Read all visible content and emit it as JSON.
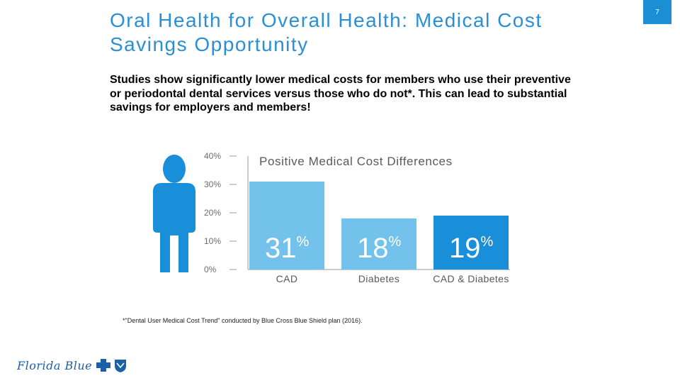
{
  "slide": {
    "title": "Oral Health for Overall Health: Medical Cost Savings Opportunity",
    "page_number": "7",
    "intro": "Studies show significantly lower medical costs for members who use their preventive or periodontal dental services versus those who do not*.  This can lead to substantial savings for employers and members!",
    "footnote": "*\"Dental User Medical Cost Trend\" conducted by Blue Cross Blue Shield plan (2016).",
    "logo_text": "Florida Blue"
  },
  "colors": {
    "title": "#2b8fd6",
    "bar_light": "#72c2ec",
    "bar_dark": "#1a8fd9",
    "person_icon": "#1a8fd9",
    "axis_text": "#6d6d6d"
  },
  "icons": [
    "person-icon",
    "cross-shield-icon"
  ],
  "chart_data": {
    "type": "bar",
    "title": "Positive Medical Cost Differences",
    "categories": [
      "CAD",
      "Diabetes",
      "CAD & Diabetes"
    ],
    "values": [
      31,
      18,
      19
    ],
    "value_labels": [
      "31",
      "18",
      "19"
    ],
    "value_unit": "%",
    "yticks": [
      "0%",
      "10%",
      "20%",
      "30%",
      "40%"
    ],
    "ylim": [
      0,
      40
    ],
    "grid": false,
    "bar_colors": [
      "#72c2ec",
      "#72c2ec",
      "#1a8fd9"
    ]
  }
}
